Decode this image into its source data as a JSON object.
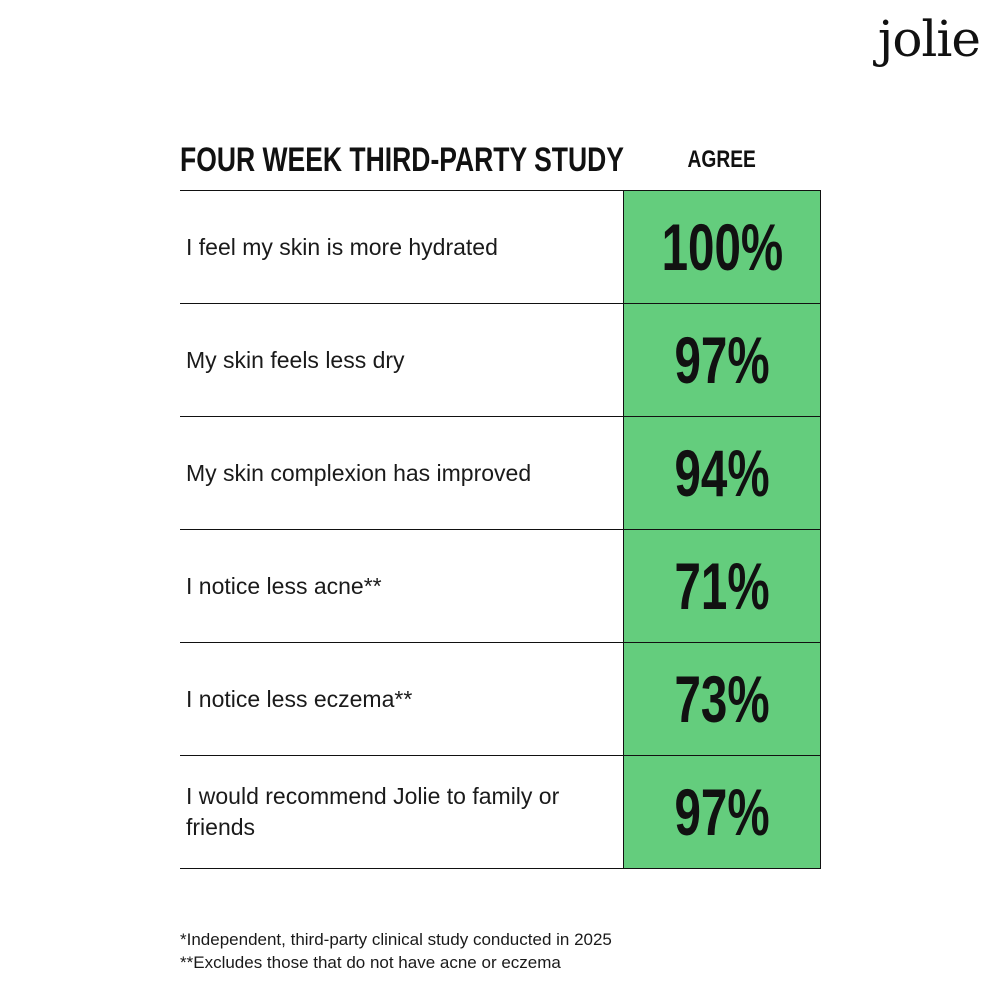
{
  "brand": {
    "logo_text": "jolie"
  },
  "header": {
    "title": "FOUR WEEK THIRD-PARTY STUDY",
    "column_label": "AGREE"
  },
  "colors": {
    "agree_cell": "#64cd7d",
    "text": "#111111",
    "rule": "#111111"
  },
  "rows": [
    {
      "statement": "I feel my skin is more hydrated",
      "agree": "100%"
    },
    {
      "statement": "My skin feels less dry",
      "agree": "97%"
    },
    {
      "statement": "My skin complexion has improved",
      "agree": "94%"
    },
    {
      "statement": "I notice less acne**",
      "agree": "71%"
    },
    {
      "statement": "I notice less eczema**",
      "agree": "73%"
    },
    {
      "statement": "I would recommend Jolie to family or friends",
      "agree": "97%"
    }
  ],
  "footnotes": [
    "*Independent, third-party clinical study conducted in 2025",
    "**Excludes those that do not have acne or eczema"
  ]
}
